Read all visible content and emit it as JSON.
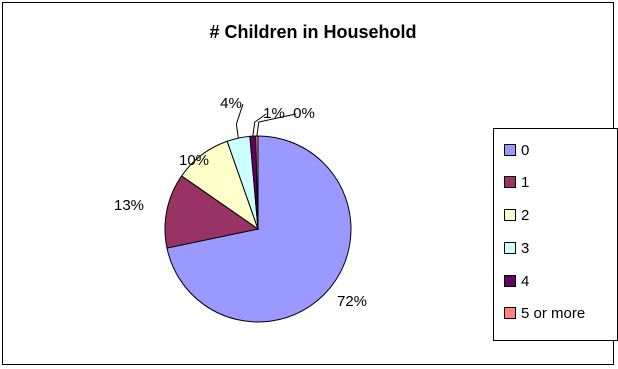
{
  "chart_data": {
    "type": "pie",
    "title": "# Children in Household",
    "categories": [
      "0",
      "1",
      "2",
      "3",
      "4",
      "5 or more"
    ],
    "values": [
      72,
      13,
      10,
      4,
      1,
      0
    ],
    "labels": [
      "72%",
      "13%",
      "10%",
      "4%",
      "1%",
      "0%"
    ],
    "colors": [
      "#9999ff",
      "#993366",
      "#ffffcc",
      "#ccffff",
      "#660066",
      "#ff8080"
    ],
    "legend": "right"
  }
}
